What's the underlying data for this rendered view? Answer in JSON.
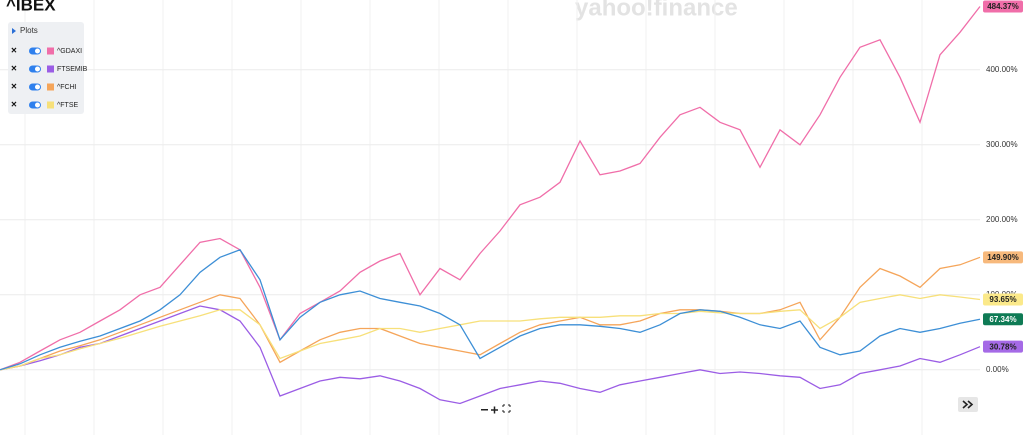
{
  "chart_data": {
    "type": "line",
    "watermark": "yahoo!finance",
    "legend_title": "Plots",
    "ylim": [
      -87,
      493
    ],
    "yticks": [
      {
        "value": 0,
        "label": "0.00%"
      },
      {
        "value": 100,
        "label": "100.00%"
      },
      {
        "value": 200,
        "label": "200.00%"
      },
      {
        "value": 300,
        "label": "300.00%"
      },
      {
        "value": 400,
        "label": "400.00%"
      }
    ],
    "grid": true,
    "series": [
      {
        "name": "^IBEX",
        "color": "#3d8fd6",
        "label_color": "#0f7b55",
        "values": [
          0,
          8,
          20,
          30,
          38,
          45,
          55,
          65,
          80,
          100,
          130,
          150,
          160,
          120,
          40,
          70,
          90,
          100,
          105,
          95,
          90,
          85,
          75,
          60,
          15,
          30,
          45,
          55,
          60,
          60,
          58,
          55,
          50,
          60,
          75,
          80,
          78,
          70,
          60,
          55,
          65,
          30,
          20,
          25,
          45,
          55,
          50,
          55,
          62,
          67.34
        ],
        "last": {
          "value": 67.34,
          "label": "67.34%"
        }
      },
      {
        "name": "^GDAXI",
        "color": "#f06ea9",
        "label_color": "#f06ea9",
        "values": [
          0,
          10,
          25,
          40,
          50,
          65,
          80,
          100,
          110,
          140,
          170,
          175,
          160,
          110,
          40,
          75,
          90,
          105,
          130,
          145,
          155,
          100,
          135,
          120,
          155,
          185,
          220,
          230,
          250,
          305,
          260,
          265,
          275,
          310,
          340,
          350,
          330,
          320,
          270,
          320,
          300,
          340,
          390,
          430,
          440,
          390,
          330,
          420,
          450,
          484.37
        ],
        "last": {
          "value": 484.37,
          "label": "484.37%"
        }
      },
      {
        "name": "FTSEMIB",
        "color": "#9b5de5",
        "label_color": "#a56ae6",
        "values": [
          0,
          5,
          12,
          20,
          30,
          35,
          45,
          55,
          65,
          75,
          85,
          80,
          65,
          30,
          -35,
          -25,
          -15,
          -10,
          -12,
          -8,
          -15,
          -25,
          -40,
          -45,
          -35,
          -25,
          -20,
          -15,
          -18,
          -25,
          -30,
          -20,
          -15,
          -10,
          -5,
          0,
          -5,
          -3,
          -5,
          -8,
          -10,
          -25,
          -20,
          -5,
          0,
          5,
          15,
          10,
          20,
          30.78
        ],
        "last": {
          "value": 30.78,
          "label": "30.78%"
        }
      },
      {
        "name": "^FCHI",
        "color": "#f5a55a",
        "label_color": "#f7b97c",
        "values": [
          0,
          5,
          15,
          25,
          32,
          40,
          50,
          60,
          70,
          80,
          90,
          100,
          95,
          60,
          10,
          25,
          40,
          50,
          55,
          55,
          45,
          35,
          30,
          25,
          20,
          35,
          50,
          60,
          65,
          70,
          60,
          60,
          65,
          75,
          80,
          80,
          78,
          75,
          75,
          80,
          90,
          40,
          70,
          110,
          135,
          125,
          110,
          135,
          140,
          149.9
        ],
        "last": {
          "value": 149.9,
          "label": "149.90%"
        }
      },
      {
        "name": "^FTSE",
        "color": "#f7e07a",
        "label_color": "#fbe98a",
        "values": [
          0,
          5,
          15,
          20,
          28,
          35,
          42,
          50,
          58,
          65,
          72,
          80,
          80,
          60,
          15,
          25,
          35,
          40,
          45,
          55,
          55,
          50,
          55,
          60,
          65,
          65,
          65,
          68,
          70,
          70,
          70,
          72,
          72,
          75,
          75,
          78,
          76,
          75,
          75,
          78,
          80,
          55,
          70,
          90,
          95,
          100,
          95,
          100,
          97,
          93.65
        ],
        "last": {
          "value": 93.65,
          "label": "93.65%"
        }
      }
    ]
  }
}
